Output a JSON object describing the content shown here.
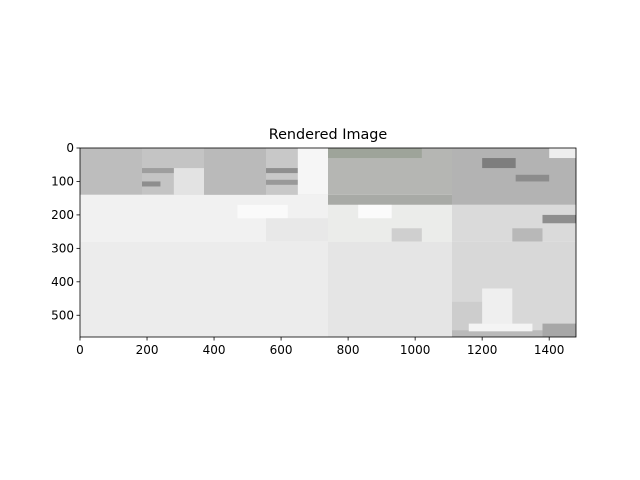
{
  "chart_data": {
    "type": "heatmap",
    "title": "Rendered Image",
    "xlabel": "",
    "ylabel": "",
    "x_ticks": [
      0,
      200,
      400,
      600,
      800,
      1000,
      1200,
      1400
    ],
    "y_ticks": [
      0,
      100,
      200,
      300,
      400,
      500
    ],
    "xlim": [
      0,
      1480
    ],
    "ylim": [
      565,
      0
    ],
    "grid": false,
    "legend": "none",
    "cells": [
      {
        "x0": 0,
        "x1": 185,
        "y0": 0,
        "y1": 140,
        "color": "#bdbdbd"
      },
      {
        "x0": 185,
        "x1": 370,
        "y0": 0,
        "y1": 140,
        "color": "#c4c4c4"
      },
      {
        "x0": 280,
        "x1": 370,
        "y0": 60,
        "y1": 140,
        "color": "#e3e3e3"
      },
      {
        "x0": 185,
        "x1": 280,
        "y0": 60,
        "y1": 75,
        "color": "#9e9e9e"
      },
      {
        "x0": 185,
        "x1": 240,
        "y0": 100,
        "y1": 115,
        "color": "#8e8e8e"
      },
      {
        "x0": 370,
        "x1": 555,
        "y0": 0,
        "y1": 170,
        "color": "#bababa"
      },
      {
        "x0": 370,
        "x1": 555,
        "y0": 140,
        "y1": 170,
        "color": "#b3b3b3"
      },
      {
        "x0": 555,
        "x1": 740,
        "y0": 0,
        "y1": 170,
        "color": "#c8c8c8"
      },
      {
        "x0": 555,
        "x1": 650,
        "y0": 60,
        "y1": 75,
        "color": "#8f8f8f"
      },
      {
        "x0": 555,
        "x1": 650,
        "y0": 95,
        "y1": 110,
        "color": "#999999"
      },
      {
        "x0": 650,
        "x1": 740,
        "y0": 0,
        "y1": 140,
        "color": "#f6f6f6"
      },
      {
        "x0": 740,
        "x1": 1110,
        "y0": 0,
        "y1": 140,
        "color": "#b5b6b3"
      },
      {
        "x0": 740,
        "x1": 1020,
        "y0": 0,
        "y1": 30,
        "color": "#9ea49a"
      },
      {
        "x0": 740,
        "x1": 1110,
        "y0": 140,
        "y1": 170,
        "color": "#a8aaa6"
      },
      {
        "x0": 1110,
        "x1": 1480,
        "y0": 0,
        "y1": 170,
        "color": "#b3b3b3"
      },
      {
        "x0": 1200,
        "x1": 1300,
        "y0": 30,
        "y1": 60,
        "color": "#7e7e7e"
      },
      {
        "x0": 1300,
        "x1": 1400,
        "y0": 80,
        "y1": 100,
        "color": "#8c8c8c"
      },
      {
        "x0": 1400,
        "x1": 1480,
        "y0": 0,
        "y1": 30,
        "color": "#eeeeee"
      },
      {
        "x0": 0,
        "x1": 740,
        "y0": 140,
        "y1": 280,
        "color": "#f1f1f1"
      },
      {
        "x0": 470,
        "x1": 620,
        "y0": 170,
        "y1": 210,
        "color": "#fafafa"
      },
      {
        "x0": 555,
        "x1": 740,
        "y0": 210,
        "y1": 280,
        "color": "#e8e8e8"
      },
      {
        "x0": 740,
        "x1": 1110,
        "y0": 170,
        "y1": 280,
        "color": "#ebecea"
      },
      {
        "x0": 830,
        "x1": 930,
        "y0": 170,
        "y1": 210,
        "color": "#fbfbfb"
      },
      {
        "x0": 930,
        "x1": 1020,
        "y0": 240,
        "y1": 280,
        "color": "#cfcfcf"
      },
      {
        "x0": 1110,
        "x1": 1480,
        "y0": 170,
        "y1": 280,
        "color": "#dadada"
      },
      {
        "x0": 1290,
        "x1": 1380,
        "y0": 240,
        "y1": 280,
        "color": "#b8b8b8"
      },
      {
        "x0": 1380,
        "x1": 1480,
        "y0": 200,
        "y1": 225,
        "color": "#8e8e8e"
      },
      {
        "x0": 0,
        "x1": 740,
        "y0": 280,
        "y1": 565,
        "color": "#ececec"
      },
      {
        "x0": 740,
        "x1": 1110,
        "y0": 280,
        "y1": 565,
        "color": "#e5e5e5"
      },
      {
        "x0": 1110,
        "x1": 1480,
        "y0": 280,
        "y1": 565,
        "color": "#d8d8d8"
      },
      {
        "x0": 1110,
        "x1": 1200,
        "y0": 460,
        "y1": 565,
        "color": "#cdcdcd"
      },
      {
        "x0": 1200,
        "x1": 1290,
        "y0": 420,
        "y1": 560,
        "color": "#efefef"
      },
      {
        "x0": 1380,
        "x1": 1480,
        "y0": 525,
        "y1": 565,
        "color": "#a7a7a7"
      },
      {
        "x0": 1110,
        "x1": 1380,
        "y0": 545,
        "y1": 565,
        "color": "#b9b9b9"
      },
      {
        "x0": 1160,
        "x1": 1350,
        "y0": 525,
        "y1": 548,
        "color": "#f4f4f4"
      }
    ]
  }
}
